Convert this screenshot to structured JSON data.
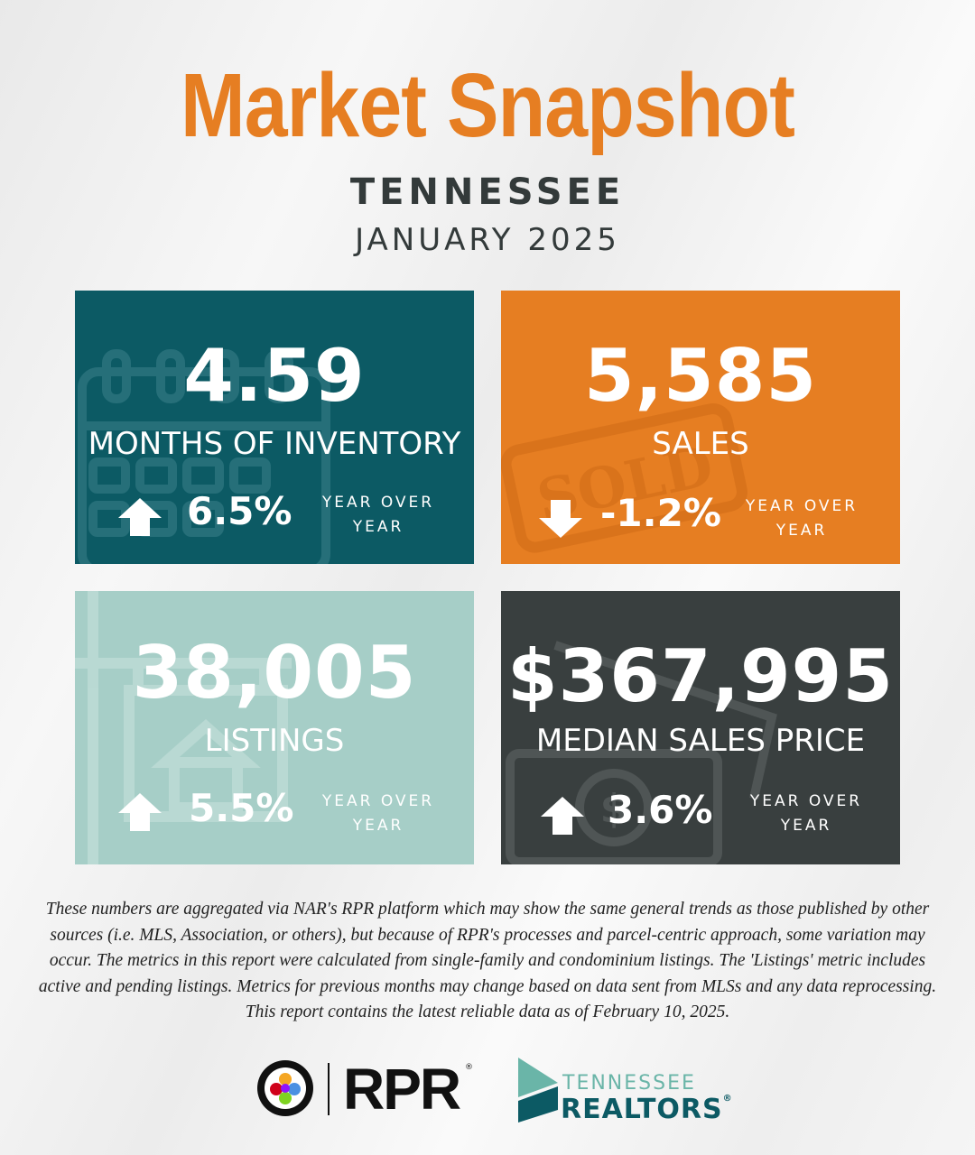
{
  "header": {
    "title": "Market Snapshot",
    "state": "TENNESSEE",
    "period": "JANUARY 2025"
  },
  "cards": [
    {
      "value": "4.59",
      "metric": "MONTHS OF INVENTORY",
      "change": "6.5%",
      "direction": "up",
      "yoy_line1": "YEAR OVER",
      "yoy_line2": "YEAR",
      "bg_icon": "calendar-icon",
      "color": "#0c5a64"
    },
    {
      "value": "5,585",
      "metric": "SALES",
      "change": "-1.2%",
      "direction": "down",
      "yoy_line1": "YEAR OVER",
      "yoy_line2": "YEAR",
      "bg_icon": "sold-stamp-icon",
      "color": "#e67e22"
    },
    {
      "value": "38,005",
      "metric": "LISTINGS",
      "change": "5.5%",
      "direction": "up",
      "yoy_line1": "YEAR OVER",
      "yoy_line2": "YEAR",
      "bg_icon": "house-sign-icon",
      "color": "#a6cec7"
    },
    {
      "value": "$367,995",
      "metric": "MEDIAN SALES PRICE",
      "change": "3.6%",
      "direction": "up",
      "yoy_line1": "YEAR OVER",
      "yoy_line2": "YEAR",
      "bg_icon": "dollar-bill-icon",
      "color": "#393f3f"
    }
  ],
  "footnote": "These numbers are aggregated via NAR's RPR platform which may show the same general trends as those published by other sources (i.e. MLS, Association, or others), but because of RPR's processes and parcel-centric approach, some variation may occur. The metrics in this report were calculated from single-family and condominium listings. The 'Listings' metric includes active and pending listings. Metrics for previous months may change based on data sent from MLSs and any data reprocessing. This report contains the latest reliable data as of February 10, 2025.",
  "logos": {
    "rpr": "RPR",
    "rpr_mark": "®",
    "tn_line1": "TENNESSEE",
    "tn_line2": "REALTORS",
    "tn_mark": "®"
  },
  "colors": {
    "accent": "#e67e22",
    "teal": "#0c5a64",
    "mint": "#a6cec7",
    "charcoal": "#393f3f"
  }
}
